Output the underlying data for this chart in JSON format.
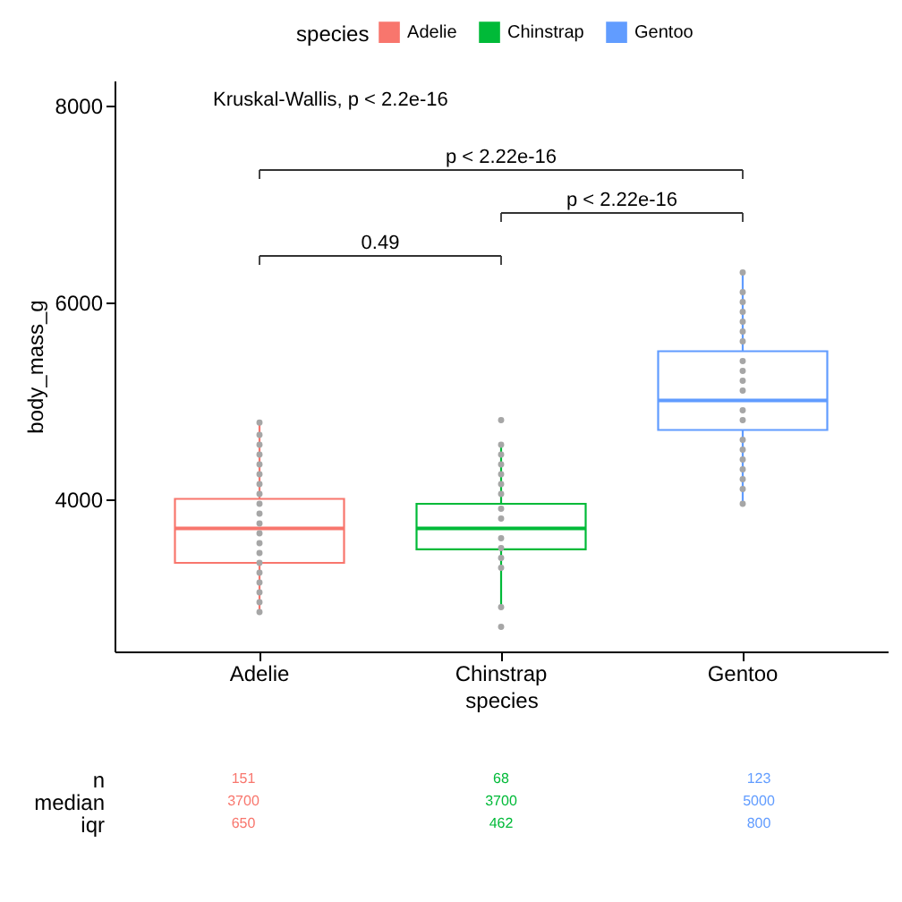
{
  "chart_data": {
    "type": "box",
    "xlabel": "species",
    "ylabel": "body_mass_g",
    "legend_title": "species",
    "legend": "top",
    "grid": false,
    "categories": [
      "Adelie",
      "Chinstrap",
      "Gentoo"
    ],
    "series": [
      {
        "name": "Adelie",
        "color": "#f8766d",
        "boxes": [
          {
            "low": 2850,
            "q1": 3350,
            "median": 3700,
            "q3": 4000,
            "high": 4775
          },
          null,
          null
        ]
      },
      {
        "name": "Chinstrap",
        "color": "#00ba38",
        "boxes": [
          null,
          {
            "low": 2900,
            "q1": 3488,
            "median": 3700,
            "q3": 3950,
            "high": 4550
          },
          null
        ]
      },
      {
        "name": "Gentoo",
        "color": "#619cff",
        "boxes": [
          null,
          null,
          {
            "low": 3950,
            "q1": 4700,
            "median": 5000,
            "q3": 5500,
            "high": 6300
          }
        ]
      },
      {
        "type": "scatter",
        "color": "#a6a6a6",
        "x": [
          "Adelie",
          "Adelie",
          "Adelie",
          "Adelie",
          "Adelie",
          "Adelie",
          "Adelie",
          "Adelie",
          "Adelie",
          "Adelie",
          "Adelie",
          "Adelie",
          "Adelie",
          "Adelie",
          "Adelie",
          "Adelie",
          "Adelie",
          "Adelie",
          "Adelie",
          "Adelie"
        ],
        "values": [
          2850,
          2950,
          3050,
          3150,
          3250,
          3350,
          3450,
          3550,
          3650,
          3750,
          3850,
          3950,
          4050,
          4150,
          4250,
          4350,
          4450,
          4550,
          4650,
          4775
        ]
      },
      {
        "type": "scatter",
        "color": "#a6a6a6",
        "x": [
          "Chinstrap",
          "Chinstrap",
          "Chinstrap",
          "Chinstrap",
          "Chinstrap",
          "Chinstrap",
          "Chinstrap",
          "Chinstrap",
          "Chinstrap",
          "Chinstrap",
          "Chinstrap",
          "Chinstrap",
          "Chinstrap",
          "Chinstrap",
          "Chinstrap"
        ],
        "values": [
          2700,
          2900,
          3300,
          3400,
          3500,
          3600,
          3800,
          3900,
          4050,
          4150,
          4250,
          4350,
          4450,
          4550,
          4800
        ]
      },
      {
        "type": "scatter",
        "color": "#a6a6a6",
        "x": [
          "Gentoo",
          "Gentoo",
          "Gentoo",
          "Gentoo",
          "Gentoo",
          "Gentoo",
          "Gentoo",
          "Gentoo",
          "Gentoo",
          "Gentoo",
          "Gentoo",
          "Gentoo",
          "Gentoo",
          "Gentoo",
          "Gentoo",
          "Gentoo",
          "Gentoo",
          "Gentoo",
          "Gentoo",
          "Gentoo"
        ],
        "values": [
          3950,
          4100,
          4200,
          4300,
          4400,
          4500,
          4600,
          4800,
          4900,
          5100,
          5200,
          5300,
          5400,
          5600,
          5700,
          5800,
          5900,
          6000,
          6100,
          6300
        ]
      }
    ],
    "ylim": [
      2450,
      8250
    ],
    "yticks": [
      4000,
      6000,
      8000
    ],
    "annotations": [
      "Kruskal-Wallis, p < 2.2e-16",
      "0.49",
      "p < 2.22e-16",
      "p < 2.22e-16",
      "n",
      "median",
      "iqr",
      "151",
      "68",
      "123",
      "3700",
      "3700",
      "5000",
      "650",
      "462",
      "800"
    ]
  }
}
